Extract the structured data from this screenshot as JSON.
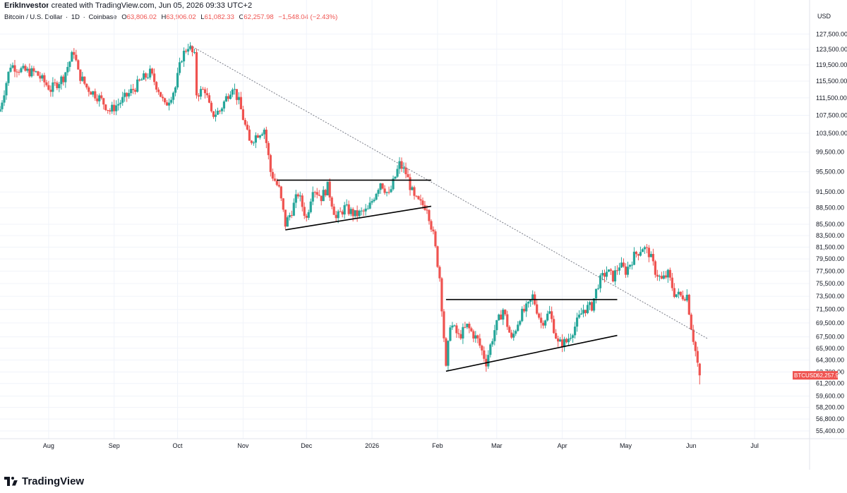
{
  "header": {
    "author": "ErikInvestor",
    "created_text": "created with TradingView.com, Jun 05, 2026 09:33 UTC+2"
  },
  "legend": {
    "symbol_name": "Bitcoin / U.S. Dollar",
    "interval": "1D",
    "exchange": "Coinbase",
    "open_label": "O",
    "open": "63,806.02",
    "high_label": "H",
    "high": "63,906.02",
    "low_label": "L",
    "low": "61,082.33",
    "close_label": "C",
    "close": "62,257.98",
    "change": "−1,548.04 (−2.43%)"
  },
  "footer": {
    "brand": "TradingView"
  },
  "colors": {
    "up": "#26a69a",
    "down": "#ef5350",
    "grid": "#f0f3fa",
    "axis_text": "#131722",
    "price_tag_bg": "#ef5350",
    "trendline": "#000000",
    "dotted_line": "#787b86"
  },
  "chart_data": {
    "type": "candlestick",
    "symbol": "BTCUSD",
    "currency": "USD",
    "last_price_label": "62,257.98",
    "x_tick_labels": [
      "Aug",
      "Sep",
      "Oct",
      "Nov",
      "Dec",
      "2026",
      "Feb",
      "Mar",
      "Apr",
      "May",
      "Jun",
      "Jul"
    ],
    "x_tick_dates": [
      "2025-08-01",
      "2025-09-01",
      "2025-10-01",
      "2025-11-01",
      "2025-12-01",
      "2026-01-01",
      "2026-02-01",
      "2026-03-01",
      "2026-04-01",
      "2026-05-01",
      "2026-06-01",
      "2026-07-01"
    ],
    "x_range": [
      "2025-07-09",
      "2026-07-27"
    ],
    "y_tick_labels": [
      "127,500.00",
      "123,500.00",
      "119,500.00",
      "115,500.00",
      "111,500.00",
      "107,500.00",
      "103,500.00",
      "99,500.00",
      "95,500.00",
      "91,500.00",
      "88,500.00",
      "85,500.00",
      "83,500.00",
      "81,500.00",
      "79,500.00",
      "77,500.00",
      "75,500.00",
      "73,500.00",
      "71,500.00",
      "69,500.00",
      "67,500.00",
      "65,900.00",
      "64,300.00",
      "62,700.00",
      "61,200.00",
      "59,600.00",
      "58,200.00",
      "56,800.00",
      "55,400.00"
    ],
    "y_tick_values": [
      127500,
      123500,
      119500,
      115500,
      111500,
      107500,
      103500,
      99500,
      95500,
      91500,
      88500,
      85500,
      83500,
      81500,
      79500,
      77500,
      75500,
      73500,
      71500,
      69500,
      67500,
      65900,
      64300,
      62700,
      61200,
      59600,
      58200,
      56800,
      55400
    ],
    "y_scale": "log",
    "ylim": [
      54500,
      131000
    ],
    "grid": true,
    "close_anchors": [
      [
        "2025-07-09",
        108900
      ],
      [
        "2025-07-14",
        119500
      ],
      [
        "2025-07-20",
        118000
      ],
      [
        "2025-07-26",
        117500
      ],
      [
        "2025-08-02",
        113500
      ],
      [
        "2025-08-08",
        116500
      ],
      [
        "2025-08-13",
        123000
      ],
      [
        "2025-08-15",
        117500
      ],
      [
        "2025-08-19",
        114000
      ],
      [
        "2025-08-25",
        111500
      ],
      [
        "2025-08-30",
        108500
      ],
      [
        "2025-09-05",
        111000
      ],
      [
        "2025-09-10",
        113500
      ],
      [
        "2025-09-14",
        115800
      ],
      [
        "2025-09-18",
        117500
      ],
      [
        "2025-09-22",
        113500
      ],
      [
        "2025-09-25",
        109500
      ],
      [
        "2025-09-30",
        114000
      ],
      [
        "2025-10-03",
        121500
      ],
      [
        "2025-10-06",
        124500
      ],
      [
        "2025-10-09",
        121500
      ],
      [
        "2025-10-10",
        112500
      ],
      [
        "2025-10-14",
        113500
      ],
      [
        "2025-10-17",
        107500
      ],
      [
        "2025-10-21",
        108500
      ],
      [
        "2025-10-27",
        114500
      ],
      [
        "2025-10-30",
        110500
      ],
      [
        "2025-11-04",
        101500
      ],
      [
        "2025-11-08",
        103500
      ],
      [
        "2025-11-11",
        104500
      ],
      [
        "2025-11-14",
        95500
      ],
      [
        "2025-11-18",
        92000
      ],
      [
        "2025-11-21",
        85500
      ],
      [
        "2025-11-24",
        88000
      ],
      [
        "2025-11-27",
        91200
      ],
      [
        "2025-12-01",
        86500
      ],
      [
        "2025-12-04",
        92500
      ],
      [
        "2025-12-08",
        90500
      ],
      [
        "2025-12-11",
        92500
      ],
      [
        "2025-12-15",
        86500
      ],
      [
        "2025-12-19",
        88500
      ],
      [
        "2025-12-24",
        87200
      ],
      [
        "2025-12-30",
        88000
      ],
      [
        "2026-01-05",
        93500
      ],
      [
        "2026-01-09",
        90800
      ],
      [
        "2026-01-14",
        97000
      ],
      [
        "2026-01-17",
        95200
      ],
      [
        "2026-01-21",
        90200
      ],
      [
        "2026-01-24",
        89200
      ],
      [
        "2026-01-27",
        88800
      ],
      [
        "2026-01-30",
        83500
      ],
      [
        "2026-02-02",
        76500
      ],
      [
        "2026-02-05",
        63000
      ],
      [
        "2026-02-07",
        69500
      ],
      [
        "2026-02-11",
        67500
      ],
      [
        "2026-02-15",
        69000
      ],
      [
        "2026-02-20",
        67000
      ],
      [
        "2026-02-24",
        64000
      ],
      [
        "2026-02-28",
        68500
      ],
      [
        "2026-03-04",
        71500
      ],
      [
        "2026-03-08",
        67000
      ],
      [
        "2026-03-12",
        70500
      ],
      [
        "2026-03-16",
        72000
      ],
      [
        "2026-03-18",
        73500
      ],
      [
        "2026-03-22",
        69500
      ],
      [
        "2026-03-26",
        71000
      ],
      [
        "2026-03-30",
        66500
      ],
      [
        "2026-04-03",
        66800
      ],
      [
        "2026-04-07",
        69000
      ],
      [
        "2026-04-11",
        71500
      ],
      [
        "2026-04-15",
        72000
      ],
      [
        "2026-04-18",
        75500
      ],
      [
        "2026-04-22",
        77500
      ],
      [
        "2026-04-25",
        76500
      ],
      [
        "2026-04-28",
        78500
      ],
      [
        "2026-05-01",
        77500
      ],
      [
        "2026-05-05",
        80000
      ],
      [
        "2026-05-09",
        81500
      ],
      [
        "2026-05-12",
        80500
      ],
      [
        "2026-05-15",
        77500
      ],
      [
        "2026-05-18",
        76000
      ],
      [
        "2026-05-21",
        77000
      ],
      [
        "2026-05-24",
        74000
      ],
      [
        "2026-05-27",
        73500
      ],
      [
        "2026-05-30",
        73700
      ],
      [
        "2026-06-01",
        69000
      ],
      [
        "2026-06-03",
        65500
      ],
      [
        "2026-06-04",
        63806.02
      ],
      [
        "2026-06-05",
        62257.98
      ]
    ],
    "last_candle": {
      "date": "2026-06-05",
      "open": 63806.02,
      "high": 63906.02,
      "low": 61082.33,
      "close": 62257.98
    },
    "drawings": [
      {
        "kind": "dotted",
        "from": [
          "2025-10-07",
          124500
        ],
        "to": [
          "2026-06-09",
          67200
        ]
      },
      {
        "kind": "solid",
        "from": [
          "2025-11-17",
          93800
        ],
        "to": [
          "2026-01-29",
          93800
        ]
      },
      {
        "kind": "solid",
        "from": [
          "2025-11-21",
          84500
        ],
        "to": [
          "2026-01-29",
          88800
        ]
      },
      {
        "kind": "solid",
        "from": [
          "2026-02-05",
          73000
        ],
        "to": [
          "2026-04-27",
          73000
        ]
      },
      {
        "kind": "solid",
        "from": [
          "2026-02-05",
          62800
        ],
        "to": [
          "2026-04-27",
          67700
        ]
      }
    ]
  }
}
